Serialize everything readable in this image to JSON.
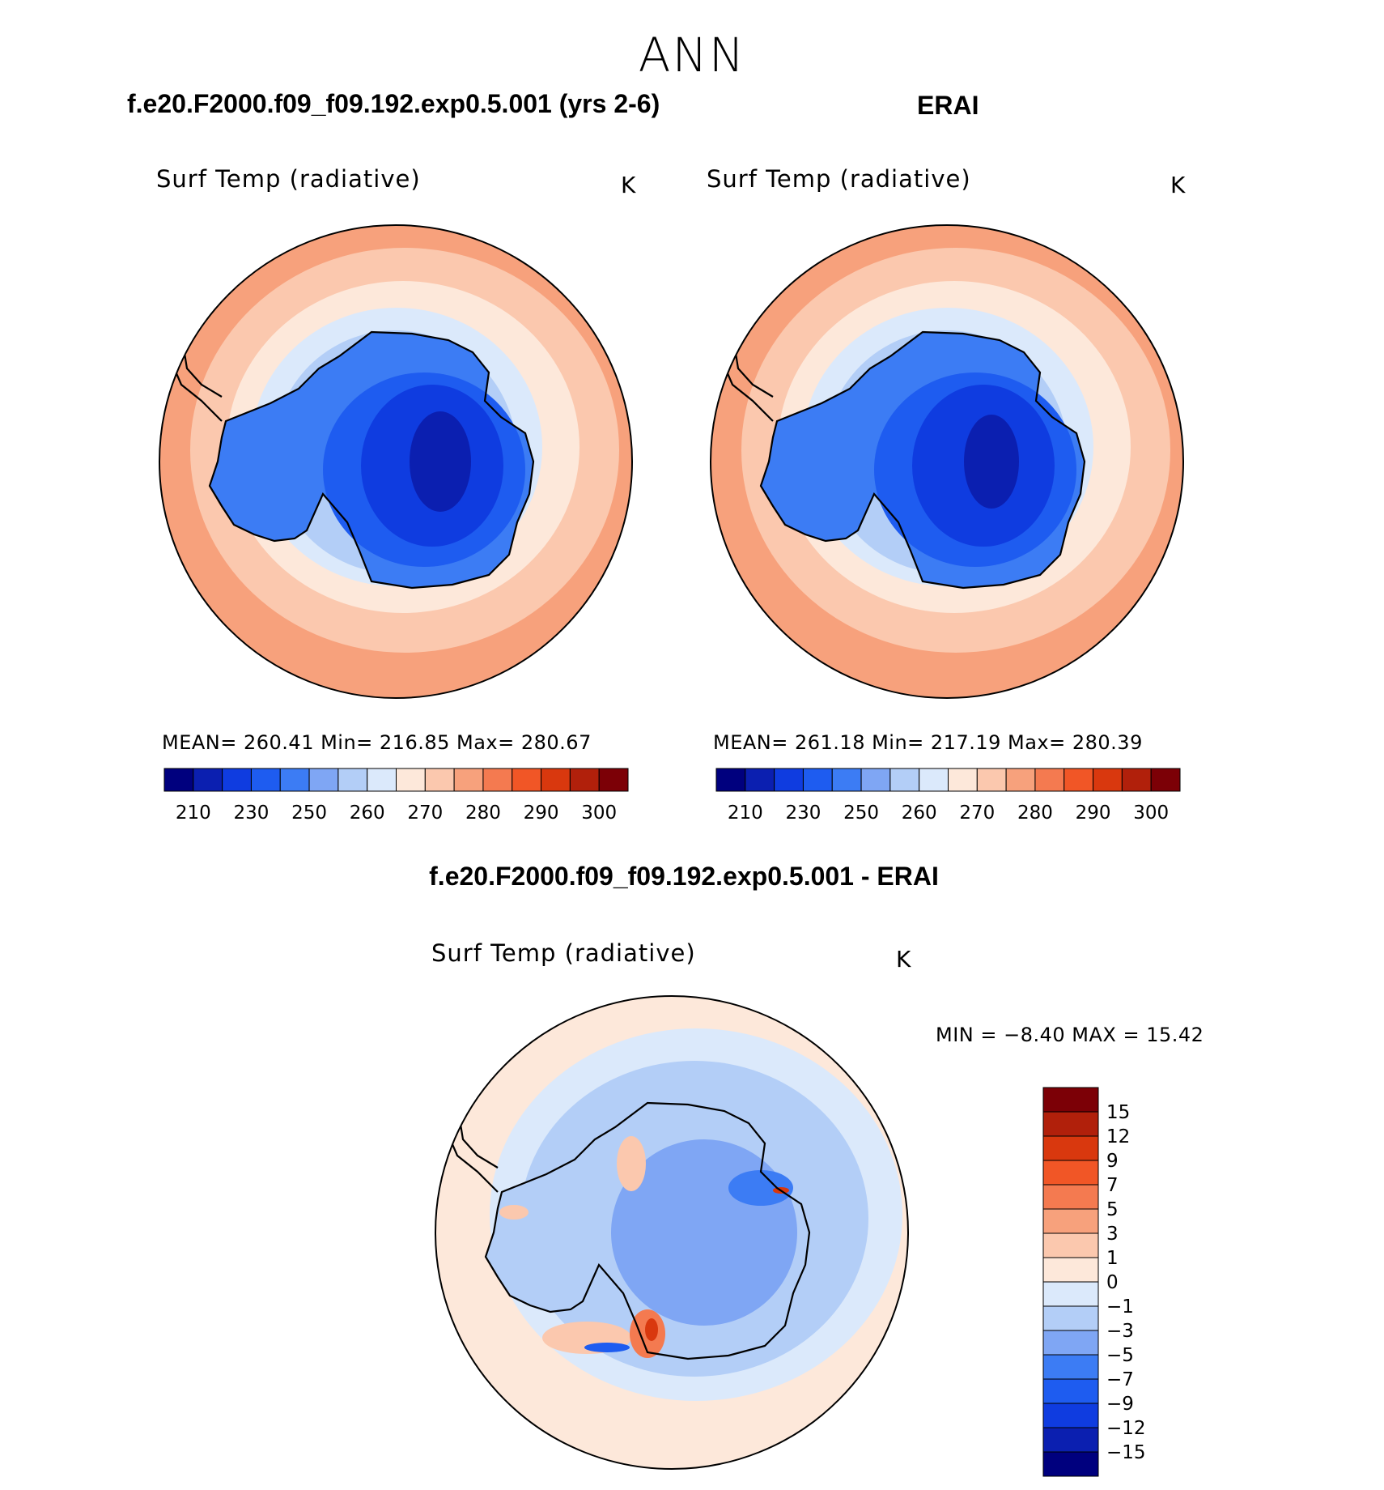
{
  "figure": {
    "season": "ANN",
    "panels": [
      {
        "case_title": "f.e20.F2000.f09_f09.192.exp0.5.001 (yrs 2-6)",
        "variable": "Surf Temp (radiative)",
        "units": "K",
        "stats": "MEAN=  260.41   Min=  216.85   Max=  280.67"
      },
      {
        "case_title": "ERAI",
        "variable": "Surf Temp (radiative)",
        "units": "K",
        "stats": "MEAN=  261.18   Min=  217.19   Max=  280.39"
      }
    ],
    "difference": {
      "case_title": "f.e20.F2000.f09_f09.192.exp0.5.001 - ERAI",
      "variable": "Surf Temp (radiative)",
      "units": "K",
      "stats": "MIN  =    −8.40  MAX  =    15.42"
    }
  },
  "chart_data": [
    {
      "type": "heatmap",
      "title": "Surf Temp (radiative)",
      "units": "K",
      "projection": "south polar stereographic",
      "mean": 260.41,
      "min": 216.85,
      "max": 280.67,
      "colorbar_levels": [
        210,
        230,
        250,
        260,
        270,
        280,
        290,
        300
      ],
      "colorbar_colors": [
        "#00007e",
        "#0b1fb0",
        "#0f3ce0",
        "#1e5cf0",
        "#3c7cf4",
        "#7fa6f4",
        "#b3cef7",
        "#dbe9fb",
        "#fde8da",
        "#fbc8ae",
        "#f7a17c",
        "#f47a50",
        "#f15626",
        "#d9380e",
        "#b1200b",
        "#7c0006"
      ]
    },
    {
      "type": "heatmap",
      "title": "Surf Temp (radiative)",
      "units": "K",
      "projection": "south polar stereographic",
      "mean": 261.18,
      "min": 217.19,
      "max": 280.39,
      "colorbar_levels": [
        210,
        230,
        250,
        260,
        270,
        280,
        290,
        300
      ],
      "colorbar_colors": [
        "#00007e",
        "#0b1fb0",
        "#0f3ce0",
        "#1e5cf0",
        "#3c7cf4",
        "#7fa6f4",
        "#b3cef7",
        "#dbe9fb",
        "#fde8da",
        "#fbc8ae",
        "#f7a17c",
        "#f47a50",
        "#f15626",
        "#d9380e",
        "#b1200b",
        "#7c0006"
      ]
    },
    {
      "type": "heatmap",
      "title": "Surf Temp (radiative)",
      "units": "K",
      "projection": "south polar stereographic",
      "min": -8.4,
      "max": 15.42,
      "colorbar_levels": [
        15,
        12,
        9,
        7,
        5,
        3,
        1,
        0,
        -1,
        -3,
        -5,
        -7,
        -9,
        -12,
        -15
      ],
      "colorbar_labels": [
        "15",
        "12",
        "9",
        "7",
        "5",
        "3",
        "1",
        "0",
        "−1",
        "−3",
        "−5",
        "−7",
        "−9",
        "−12",
        "−15"
      ],
      "colorbar_colors": [
        "#7c0006",
        "#b1200b",
        "#d9380e",
        "#f15626",
        "#f47a50",
        "#f7a17c",
        "#fbc8ae",
        "#fde8da",
        "#dbe9fb",
        "#b3cef7",
        "#7fa6f4",
        "#3c7cf4",
        "#1e5cf0",
        "#0f3ce0",
        "#0b1fb0",
        "#00007e"
      ]
    }
  ]
}
